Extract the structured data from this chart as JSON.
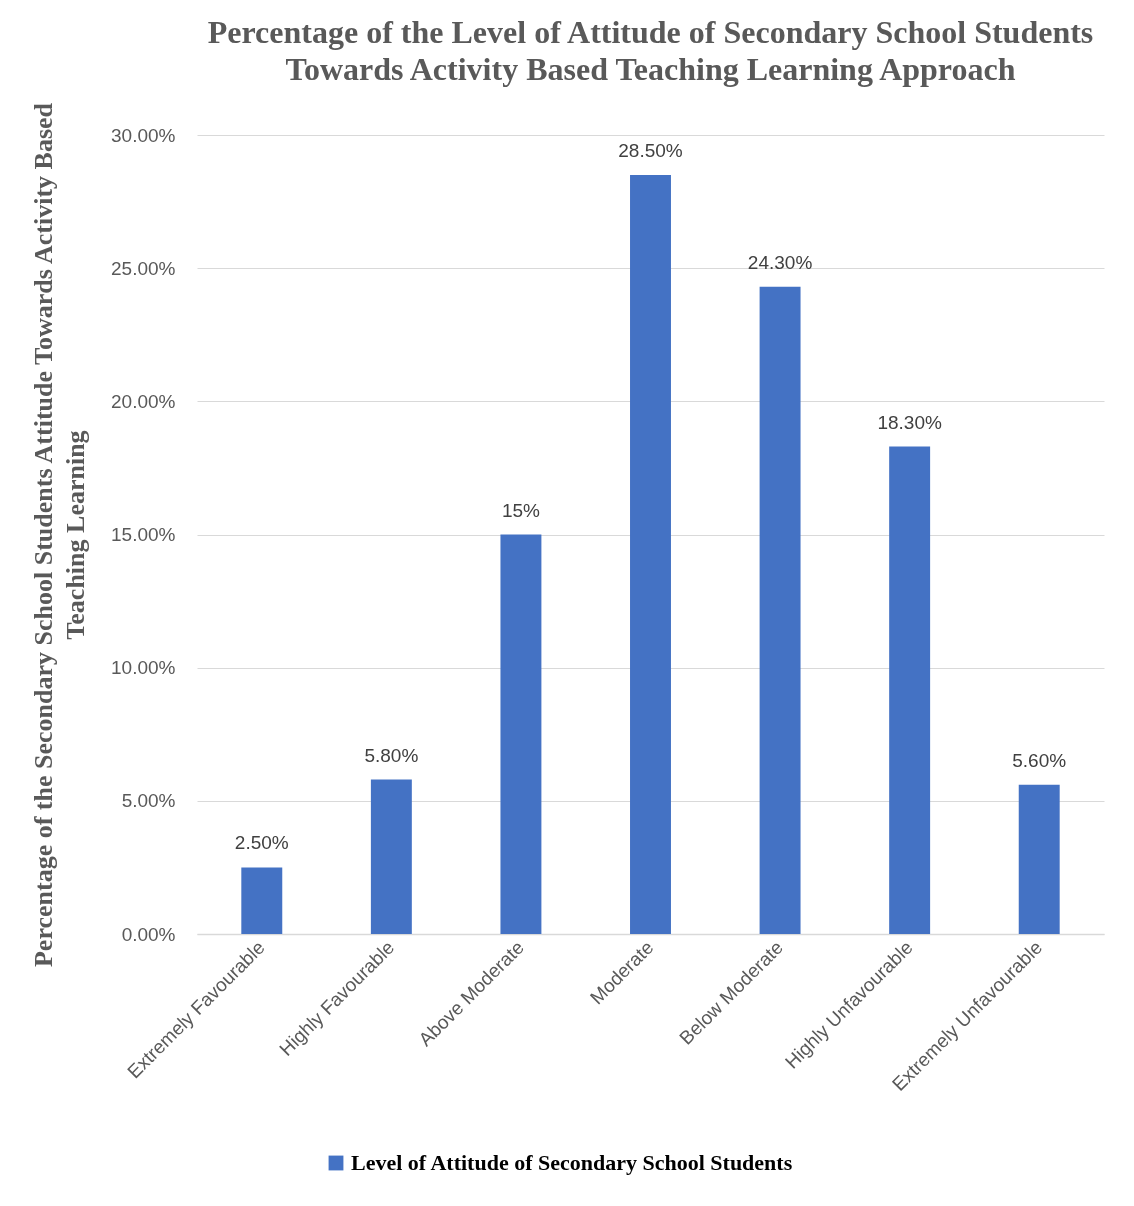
{
  "chart_data": {
    "type": "bar",
    "title": "Percentage of the Level of Attitude of Secondary School Students Towards Activity Based Teaching Learning Approach",
    "ylabel": "Percentage of the Secondary School Students Attitude Towards Activity Based Teaching Learning",
    "categories": [
      "Extremely Favourable",
      "Highly Favourable",
      "Above Moderate",
      "Moderate",
      "Below Moderate",
      "Highly Unfavourable",
      "Extremely Unfavourable"
    ],
    "series": [
      {
        "name": "Level of Attitude of Secondary School Students",
        "color": "#4472c4",
        "values": [
          2.5,
          5.8,
          15,
          28.5,
          24.3,
          18.3,
          5.6
        ],
        "value_labels": [
          "2.50%",
          "5.80%",
          "15%",
          "28.50%",
          "24.30%",
          "18.30%",
          "5.60%"
        ]
      }
    ],
    "ylim": [
      0,
      30
    ],
    "yticks": [
      {
        "value": 0,
        "label": "0.00%"
      },
      {
        "value": 5,
        "label": "5.00%"
      },
      {
        "value": 10,
        "label": "10.00%"
      },
      {
        "value": 15,
        "label": "15.00%"
      },
      {
        "value": 20,
        "label": "20.00%"
      },
      {
        "value": 25,
        "label": "25.00%"
      },
      {
        "value": 30,
        "label": "30.00%"
      }
    ],
    "grid": "y",
    "legend": "bottom"
  }
}
